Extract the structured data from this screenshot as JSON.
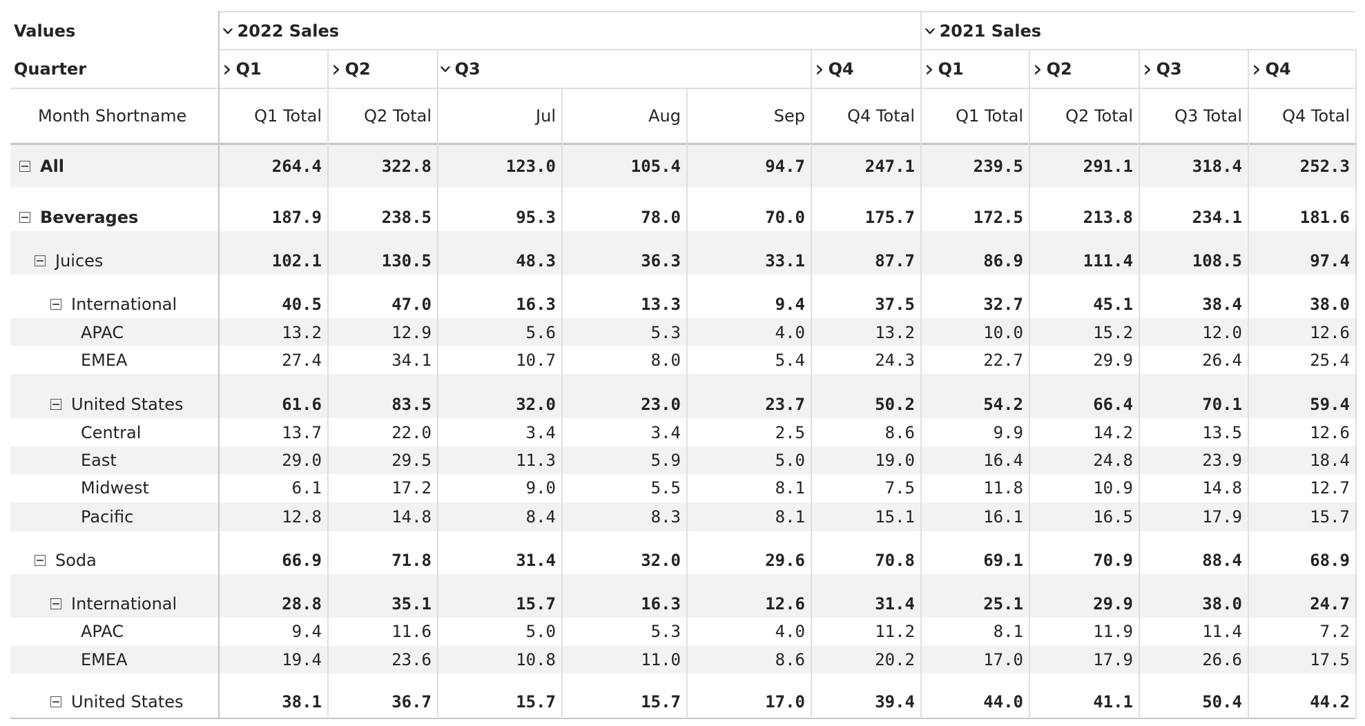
{
  "header": {
    "values_label": "Values",
    "quarter_label": "Quarter",
    "month_label": "Month Shortname",
    "year_groups": [
      "2022 Sales",
      "2021 Sales"
    ],
    "quarters": [
      "Q1",
      "Q2",
      "Q3",
      "Q4",
      "Q1",
      "Q2",
      "Q3",
      "Q4"
    ],
    "columns": [
      "Q1 Total",
      "Q2 Total",
      "Jul",
      "Aug",
      "Sep",
      "Q4 Total",
      "Q1 Total",
      "Q2 Total",
      "Q3 Total",
      "Q4 Total"
    ]
  },
  "icons": {
    "collapsed": "chevron-right-icon",
    "expanded": "chevron-down-icon",
    "row_toggle": "collapse-minus-icon"
  },
  "colors": {
    "band": "#f3f2f1",
    "text": "#252423",
    "grid": "#e1dfdd"
  },
  "rows": [
    {
      "label": "All",
      "values": [
        "264.4",
        "322.8",
        "123.0",
        "105.4",
        "94.7",
        "247.1",
        "239.5",
        "291.1",
        "318.4",
        "252.3"
      ]
    },
    {
      "label": "Beverages",
      "values": [
        "187.9",
        "238.5",
        "95.3",
        "78.0",
        "70.0",
        "175.7",
        "172.5",
        "213.8",
        "234.1",
        "181.6"
      ]
    },
    {
      "label": "Juices",
      "values": [
        "102.1",
        "130.5",
        "48.3",
        "36.3",
        "33.1",
        "87.7",
        "86.9",
        "111.4",
        "108.5",
        "97.4"
      ]
    },
    {
      "label": "International",
      "values": [
        "40.5",
        "47.0",
        "16.3",
        "13.3",
        "9.4",
        "37.5",
        "32.7",
        "45.1",
        "38.4",
        "38.0"
      ]
    },
    {
      "label": "APAC",
      "values": [
        "13.2",
        "12.9",
        "5.6",
        "5.3",
        "4.0",
        "13.2",
        "10.0",
        "15.2",
        "12.0",
        "12.6"
      ]
    },
    {
      "label": "EMEA",
      "values": [
        "27.4",
        "34.1",
        "10.7",
        "8.0",
        "5.4",
        "24.3",
        "22.7",
        "29.9",
        "26.4",
        "25.4"
      ]
    },
    {
      "label": "United States",
      "values": [
        "61.6",
        "83.5",
        "32.0",
        "23.0",
        "23.7",
        "50.2",
        "54.2",
        "66.4",
        "70.1",
        "59.4"
      ]
    },
    {
      "label": "Central",
      "values": [
        "13.7",
        "22.0",
        "3.4",
        "3.4",
        "2.5",
        "8.6",
        "9.9",
        "14.2",
        "13.5",
        "12.6"
      ]
    },
    {
      "label": "East",
      "values": [
        "29.0",
        "29.5",
        "11.3",
        "5.9",
        "5.0",
        "19.0",
        "16.4",
        "24.8",
        "23.9",
        "18.4"
      ]
    },
    {
      "label": "Midwest",
      "values": [
        "6.1",
        "17.2",
        "9.0",
        "5.5",
        "8.1",
        "7.5",
        "11.8",
        "10.9",
        "14.8",
        "12.7"
      ]
    },
    {
      "label": "Pacific",
      "values": [
        "12.8",
        "14.8",
        "8.4",
        "8.3",
        "8.1",
        "15.1",
        "16.1",
        "16.5",
        "17.9",
        "15.7"
      ]
    },
    {
      "label": "Soda",
      "values": [
        "66.9",
        "71.8",
        "31.4",
        "32.0",
        "29.6",
        "70.8",
        "69.1",
        "70.9",
        "88.4",
        "68.9"
      ]
    },
    {
      "label": "International",
      "values": [
        "28.8",
        "35.1",
        "15.7",
        "16.3",
        "12.6",
        "31.4",
        "25.1",
        "29.9",
        "38.0",
        "24.7"
      ]
    },
    {
      "label": "APAC",
      "values": [
        "9.4",
        "11.6",
        "5.0",
        "5.3",
        "4.0",
        "11.2",
        "8.1",
        "11.9",
        "11.4",
        "7.2"
      ]
    },
    {
      "label": "EMEA",
      "values": [
        "19.4",
        "23.6",
        "10.8",
        "11.0",
        "8.6",
        "20.2",
        "17.0",
        "17.9",
        "26.6",
        "17.5"
      ]
    },
    {
      "label": "United States",
      "values": [
        "38.1",
        "36.7",
        "15.7",
        "15.7",
        "17.0",
        "39.4",
        "44.0",
        "41.1",
        "50.4",
        "44.2"
      ]
    }
  ]
}
